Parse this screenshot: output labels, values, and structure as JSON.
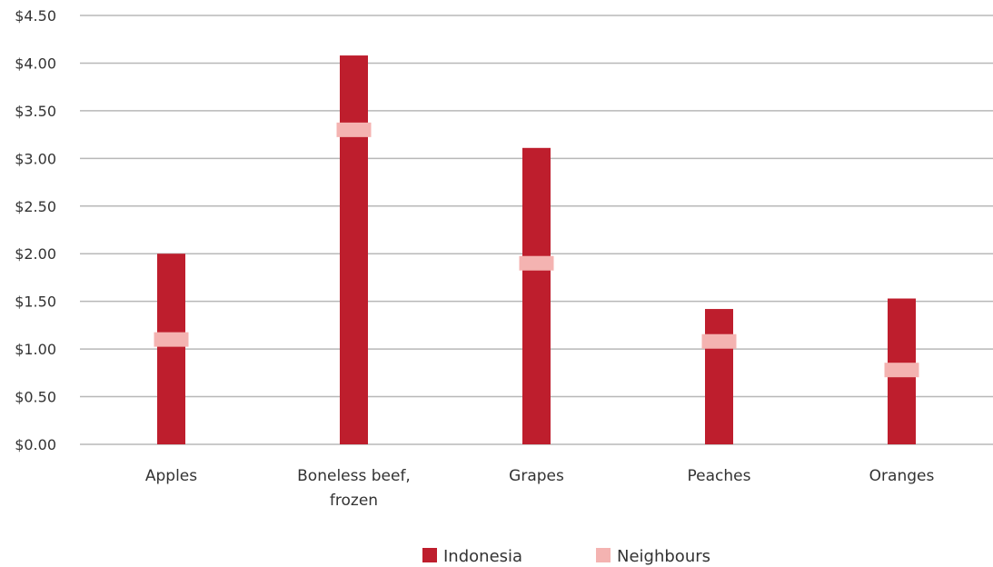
{
  "chart_data": {
    "type": "bar",
    "categories": [
      [
        "Apples"
      ],
      [
        "Boneless beef,",
        "frozen"
      ],
      [
        "Grapes"
      ],
      [
        "Peaches"
      ],
      [
        "Oranges"
      ]
    ],
    "series": [
      {
        "name": "Indonesia",
        "kind": "bar",
        "color": "#be1e2d",
        "values": [
          2.0,
          4.08,
          3.11,
          1.42,
          1.53
        ]
      },
      {
        "name": "Neighbours",
        "kind": "marker",
        "color": "#f4b3b1",
        "values": [
          1.1,
          3.3,
          1.9,
          1.08,
          0.78
        ]
      }
    ],
    "ylim": [
      0,
      4.5
    ],
    "yticks": [
      0,
      0.5,
      1.0,
      1.5,
      2.0,
      2.5,
      3.0,
      3.5,
      4.0,
      4.5
    ],
    "ytick_labels": [
      "$0.00",
      "$0.50",
      "$1.00",
      "$1.50",
      "$2.00",
      "$2.50",
      "$3.00",
      "$3.50",
      "$4.00",
      "$4.50"
    ],
    "grid": true,
    "legend_position": "bottom-center",
    "title": "",
    "xlabel": "",
    "ylabel": ""
  }
}
